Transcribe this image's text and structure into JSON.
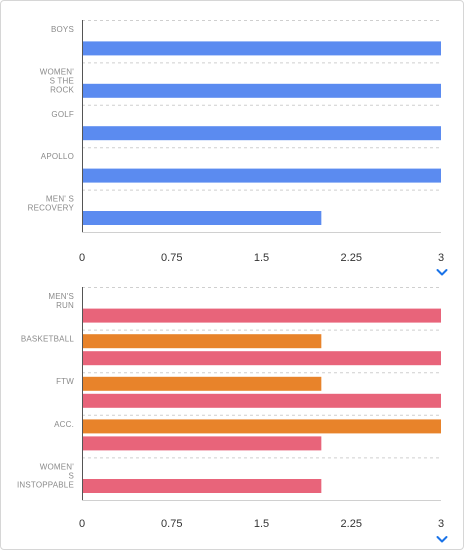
{
  "chart_data": [
    {
      "type": "bar",
      "orientation": "horizontal",
      "categories": [
        [
          "BOYS"
        ],
        [
          "WOMEN'",
          "S THE",
          "ROCK"
        ],
        [
          "GOLF"
        ],
        [
          "APOLLO"
        ],
        [
          "MEN' S",
          "RECOVERY"
        ]
      ],
      "series": [
        {
          "values": [
            3,
            3,
            3,
            3,
            2
          ],
          "color": "#5b8bf0"
        }
      ],
      "xlim": [
        0,
        3
      ],
      "ticks": [
        "0",
        "0.75",
        "1.5",
        "2.25",
        "3"
      ],
      "grid": "dashed-horizontal"
    },
    {
      "type": "bar",
      "orientation": "horizontal",
      "categories": [
        [
          "MEN'S",
          "RUN"
        ],
        [
          "BASKETBALL"
        ],
        [
          "FTW"
        ],
        [
          "ACC."
        ],
        [
          "WOMEN'",
          "S",
          "INSTOPPABLE"
        ]
      ],
      "series": [
        {
          "values": [
            null,
            2,
            2,
            3,
            null
          ],
          "color": "#e8832a"
        },
        {
          "values": [
            3,
            3,
            3,
            2,
            2
          ],
          "color": "#e8647a"
        }
      ],
      "xlim": [
        0,
        3
      ],
      "ticks": [
        "0",
        "0.75",
        "1.5",
        "2.25",
        "3"
      ],
      "grid": "dashed-horizontal"
    }
  ],
  "controls": {
    "chevron_icon": "chevron-down-icon",
    "accent_color": "#1a73e8"
  }
}
